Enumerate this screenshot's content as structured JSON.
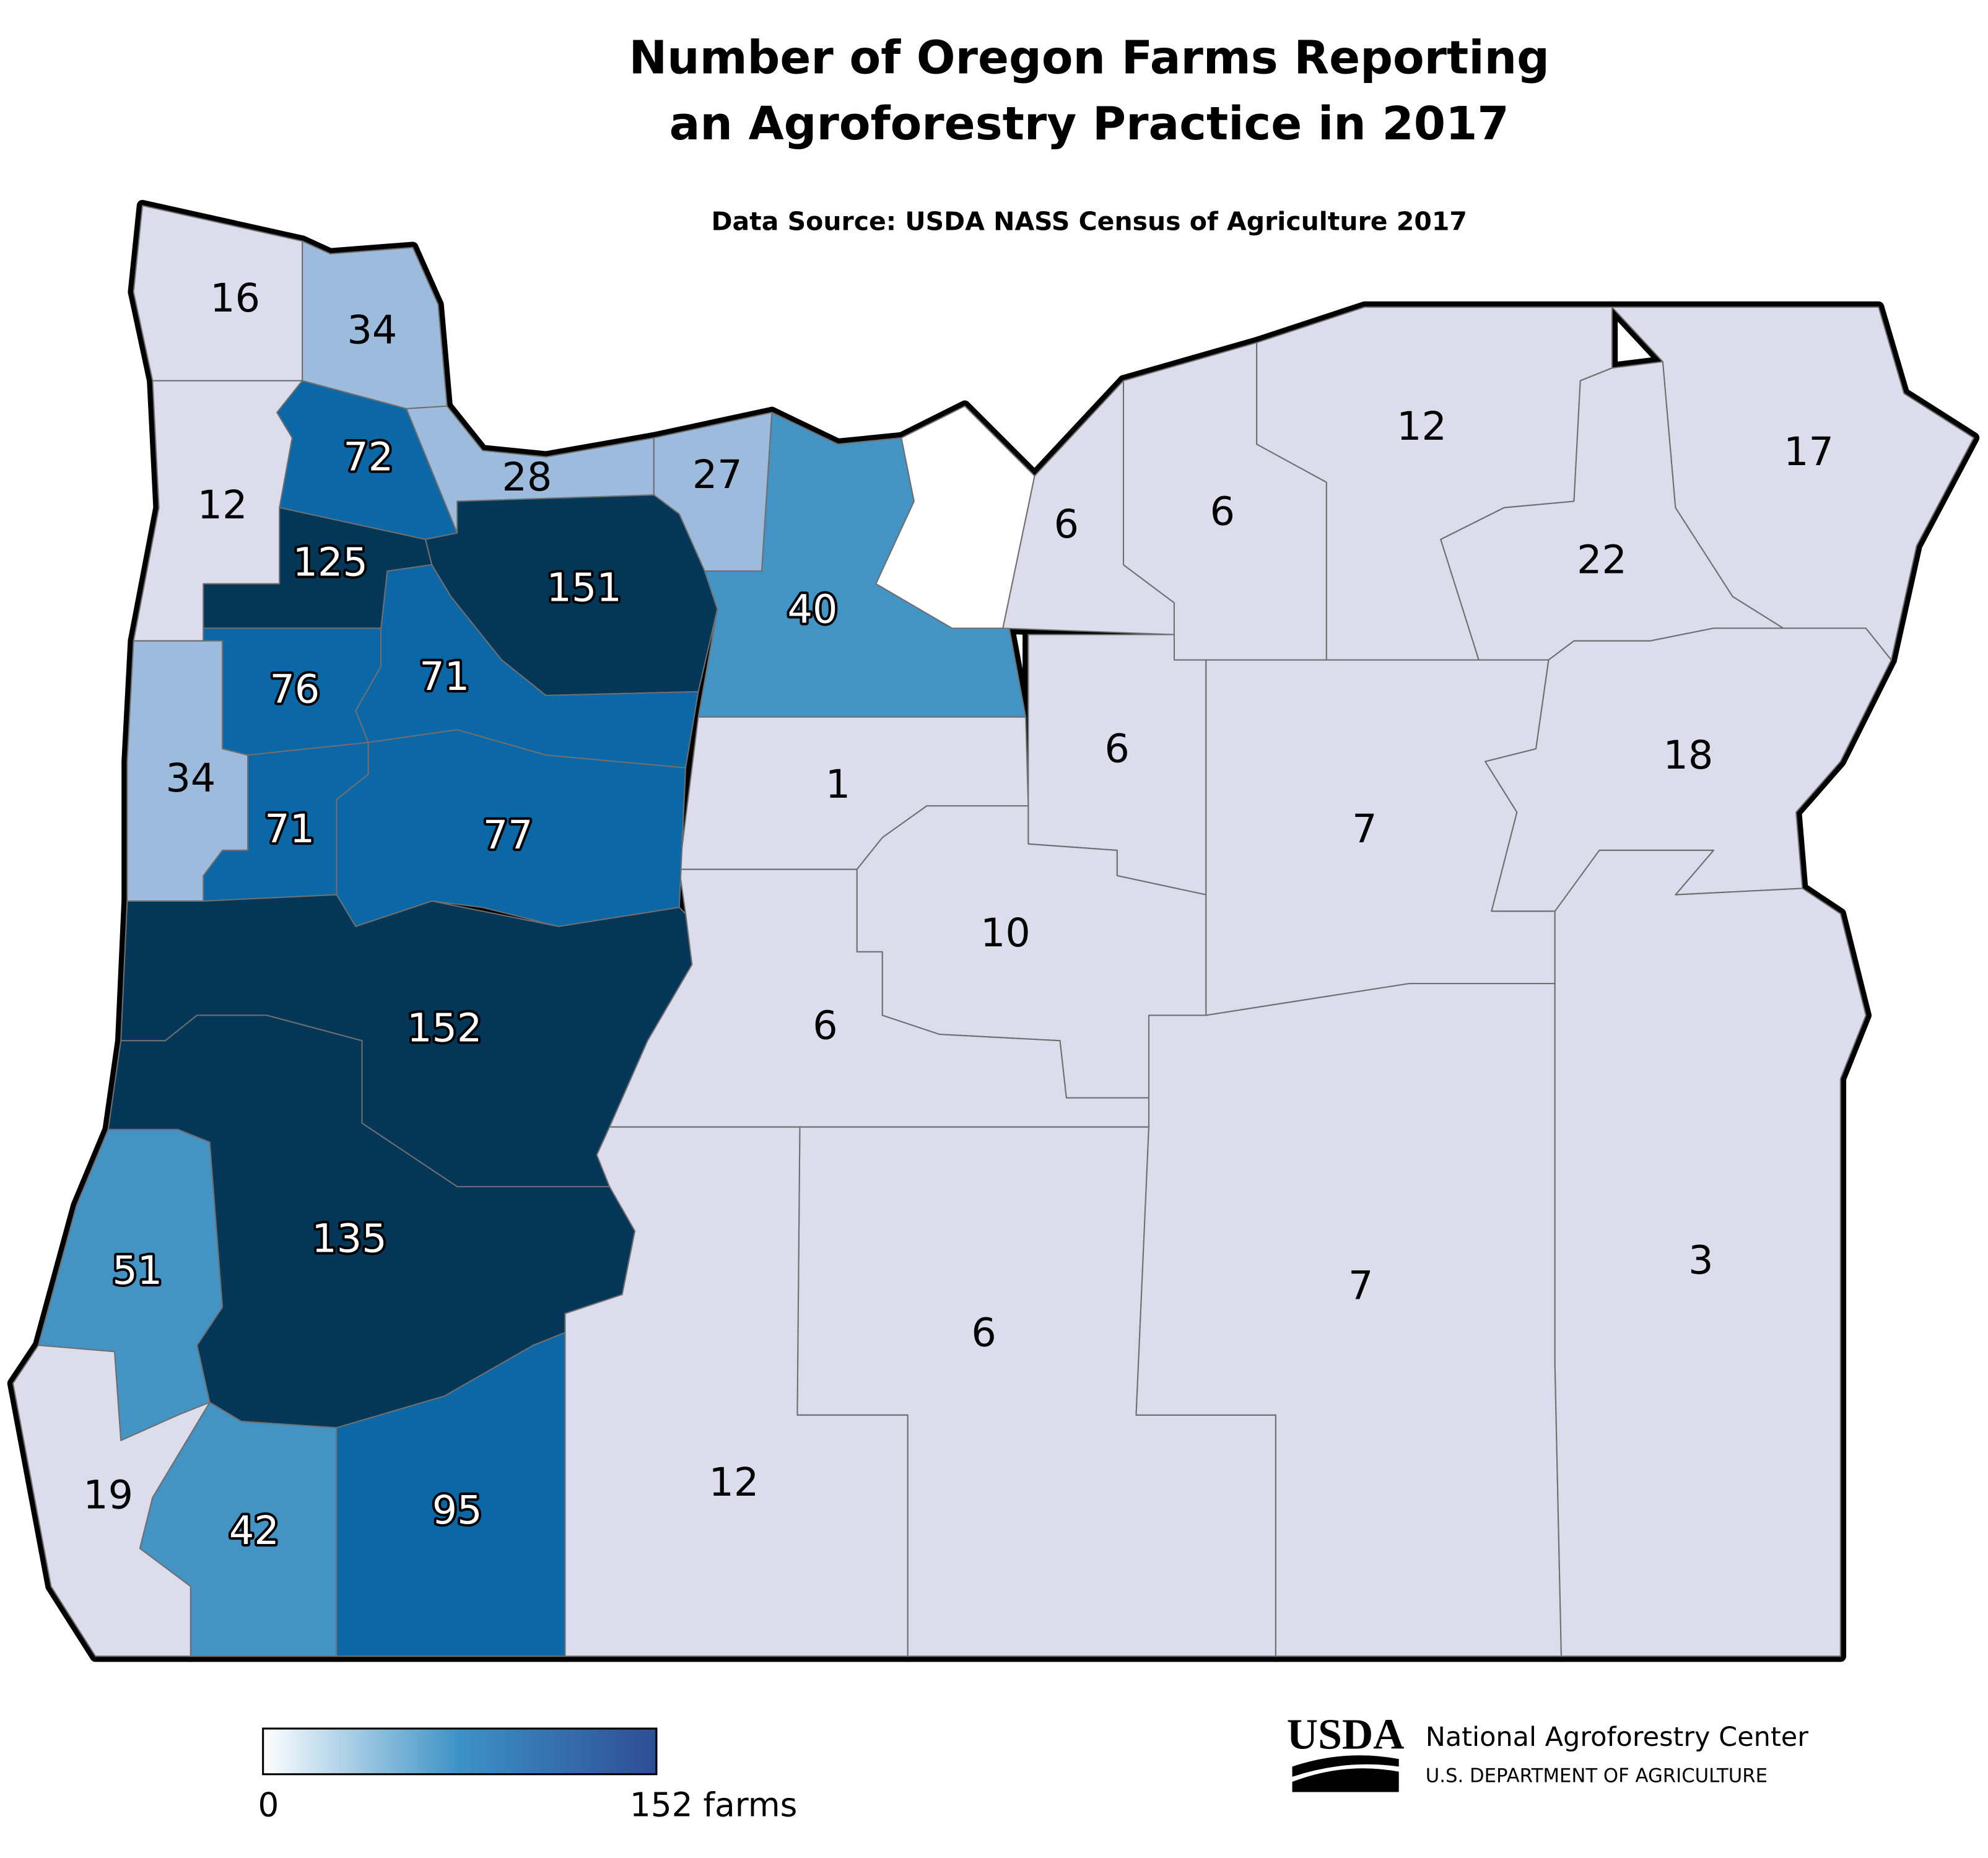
{
  "chart_data": {
    "type": "choropleth",
    "title": [
      "Number of Oregon Farms Reporting",
      "an Agroforestry Practice in 2017"
    ],
    "subtitle": "Data Source: USDA NASS Census of Agriculture 2017",
    "regions": [
      {
        "value": 16,
        "color": "#dcdcec"
      },
      {
        "value": 34,
        "color": "#9dbbdc"
      },
      {
        "value": 12,
        "color": "#dcdcec"
      },
      {
        "value": 72,
        "color": "#0b67a6"
      },
      {
        "value": 28,
        "color": "#9dbbdc"
      },
      {
        "value": 27,
        "color": "#9dbbdc"
      },
      {
        "value": 40,
        "color": "#4393c4"
      },
      {
        "value": null,
        "color": "#ffffff"
      },
      {
        "value": 6,
        "color": "#dcdcec"
      },
      {
        "value": 6,
        "color": "#dcdcec"
      },
      {
        "value": 12,
        "color": "#dcdcec"
      },
      {
        "value": 22,
        "color": "#dcdcec"
      },
      {
        "value": 17,
        "color": "#dcdcec"
      },
      {
        "value": 18,
        "color": "#dcdcec"
      },
      {
        "value": 7,
        "color": "#dcdcec"
      },
      {
        "value": 6,
        "color": "#dcdcec"
      },
      {
        "value": 1,
        "color": "#dcdcec"
      },
      {
        "value": 10,
        "color": "#dcdcec"
      },
      {
        "value": 6,
        "color": "#dcdcec"
      },
      {
        "value": 6,
        "color": "#dcdcec"
      },
      {
        "value": 12,
        "color": "#dcdcec"
      },
      {
        "value": 7,
        "color": "#dcdcec"
      },
      {
        "value": 3,
        "color": "#dcdcec"
      },
      {
        "value": 125,
        "color": "#033657"
      },
      {
        "value": 151,
        "color": "#033657"
      },
      {
        "value": 76,
        "color": "#0b67a6"
      },
      {
        "value": 71,
        "color": "#0b67a6"
      },
      {
        "value": 34,
        "color": "#9dbbdc"
      },
      {
        "value": 71,
        "color": "#0b67a6"
      },
      {
        "value": 77,
        "color": "#0b67a6"
      },
      {
        "value": 152,
        "color": "#033657"
      },
      {
        "value": 135,
        "color": "#033657"
      },
      {
        "value": 51,
        "color": "#4393c4"
      },
      {
        "value": 19,
        "color": "#dcdcec"
      },
      {
        "value": 42,
        "color": "#4393c4"
      },
      {
        "value": 95,
        "color": "#0b67a6"
      }
    ],
    "legend_colors": [
      "#ffffff",
      "#3c92c6",
      "#2e4d92"
    ],
    "legend_ticks": [
      0,
      {
        "value": 152,
        "label": "152 farms"
      }
    ]
  },
  "footer": {
    "logo": "USDA",
    "org": "National Agroforestry Center",
    "dept": "U.S. DEPARTMENT OF AGRICULTURE"
  }
}
